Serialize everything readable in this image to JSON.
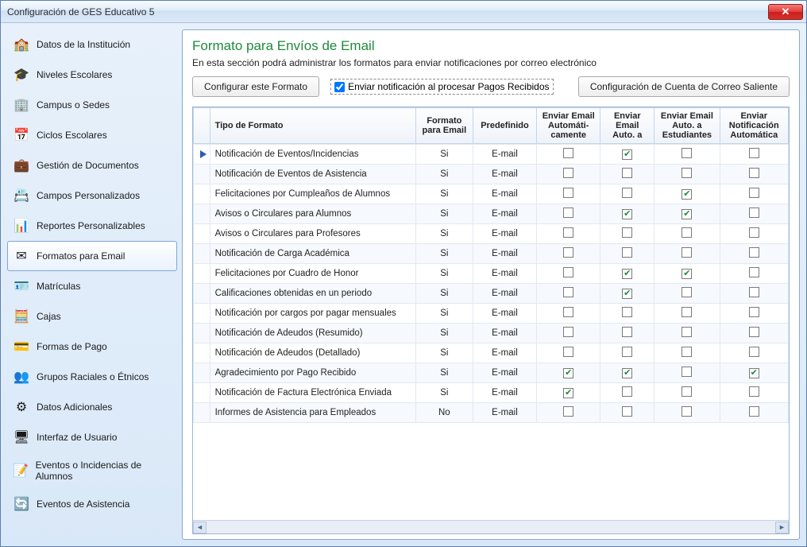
{
  "window": {
    "title": "Configuración de GES Educativo 5"
  },
  "sidebar": {
    "items": [
      {
        "label": "Datos de la Institución",
        "icon": "🏫"
      },
      {
        "label": "Niveles Escolares",
        "icon": "🎓"
      },
      {
        "label": "Campus o Sedes",
        "icon": "🏢"
      },
      {
        "label": "Ciclos Escolares",
        "icon": "📅"
      },
      {
        "label": "Gestión de Documentos",
        "icon": "💼"
      },
      {
        "label": "Campos Personalizados",
        "icon": "📇"
      },
      {
        "label": "Reportes Personalizables",
        "icon": "📊"
      },
      {
        "label": "Formatos para Email",
        "icon": "✉",
        "selected": true
      },
      {
        "label": "Matrículas",
        "icon": "🪪"
      },
      {
        "label": "Cajas",
        "icon": "🧮"
      },
      {
        "label": "Formas de Pago",
        "icon": "💳"
      },
      {
        "label": "Grupos Raciales o Étnicos",
        "icon": "👥"
      },
      {
        "label": "Datos Adicionales",
        "icon": "⚙"
      },
      {
        "label": "Interfaz de Usuario",
        "icon": "🖥"
      },
      {
        "label": "Eventos o Incidencias de Alumnos",
        "icon": "📝"
      },
      {
        "label": "Eventos de Asistencia",
        "icon": "🔄"
      }
    ]
  },
  "page": {
    "title": "Formato para Envíos de Email",
    "description": "En esta sección podrá administrar los formatos para enviar notificaciones por correo electrónico"
  },
  "toolbar": {
    "configure_label": "Configurar este Formato",
    "checkbox_label": "Enviar notificación al procesar Pagos Recibidos",
    "checkbox_checked": true,
    "account_label": "Configuración de Cuenta de Correo Saliente"
  },
  "grid": {
    "columns": [
      "Tipo de Formato",
      "Formato para Email",
      "Predefinido",
      "Enviar Email Automáti-camente",
      "Enviar Email Auto.  a",
      "Enviar Email Auto. a Estudiantes",
      "Enviar Notificación Automática"
    ],
    "rows": [
      {
        "current": true,
        "name": "Notificación de Eventos/Incidencias",
        "fmt": "Si",
        "pre": "E-mail",
        "c1": false,
        "c2": true,
        "c3": false,
        "c4": false
      },
      {
        "current": false,
        "name": "Notificación de Eventos de Asistencia",
        "fmt": "Si",
        "pre": "E-mail",
        "c1": false,
        "c2": false,
        "c3": false,
        "c4": false
      },
      {
        "current": false,
        "name": "Felicitaciones por Cumpleaños de Alumnos",
        "fmt": "Si",
        "pre": "E-mail",
        "c1": false,
        "c2": false,
        "c3": true,
        "c4": false
      },
      {
        "current": false,
        "name": "Avisos o Circulares para Alumnos",
        "fmt": "Si",
        "pre": "E-mail",
        "c1": false,
        "c2": true,
        "c3": true,
        "c4": false
      },
      {
        "current": false,
        "name": "Avisos o Circulares para Profesores",
        "fmt": "Si",
        "pre": "E-mail",
        "c1": false,
        "c2": false,
        "c3": false,
        "c4": false
      },
      {
        "current": false,
        "name": "Notificación de Carga Académica",
        "fmt": "Si",
        "pre": "E-mail",
        "c1": false,
        "c2": false,
        "c3": false,
        "c4": false
      },
      {
        "current": false,
        "name": "Felicitaciones por Cuadro de Honor",
        "fmt": "Si",
        "pre": "E-mail",
        "c1": false,
        "c2": true,
        "c3": true,
        "c4": false
      },
      {
        "current": false,
        "name": "Calificaciones obtenidas en un periodo",
        "fmt": "Si",
        "pre": "E-mail",
        "c1": false,
        "c2": true,
        "c3": false,
        "c4": false
      },
      {
        "current": false,
        "name": "Notificación por cargos por pagar mensuales",
        "fmt": "Si",
        "pre": "E-mail",
        "c1": false,
        "c2": false,
        "c3": false,
        "c4": false
      },
      {
        "current": false,
        "name": "Notificación de Adeudos (Resumido)",
        "fmt": "Si",
        "pre": "E-mail",
        "c1": false,
        "c2": false,
        "c3": false,
        "c4": false
      },
      {
        "current": false,
        "name": "Notificación de Adeudos (Detallado)",
        "fmt": "Si",
        "pre": "E-mail",
        "c1": false,
        "c2": false,
        "c3": false,
        "c4": false
      },
      {
        "current": false,
        "name": "Agradecimiento por Pago Recibido",
        "fmt": "Si",
        "pre": "E-mail",
        "c1": true,
        "c2": true,
        "c3": false,
        "c4": true
      },
      {
        "current": false,
        "name": "Notificación de Factura Electrónica Enviada",
        "fmt": "Si",
        "pre": "E-mail",
        "c1": true,
        "c2": false,
        "c3": false,
        "c4": false
      },
      {
        "current": false,
        "name": "Informes de Asistencia para Empleados",
        "fmt": "No",
        "pre": "E-mail",
        "c1": false,
        "c2": false,
        "c3": false,
        "c4": false
      }
    ]
  },
  "colors": {
    "title_green": "#1e8a3b",
    "window_border": "#5a7fb0",
    "selected_border": "#7da7d9"
  }
}
